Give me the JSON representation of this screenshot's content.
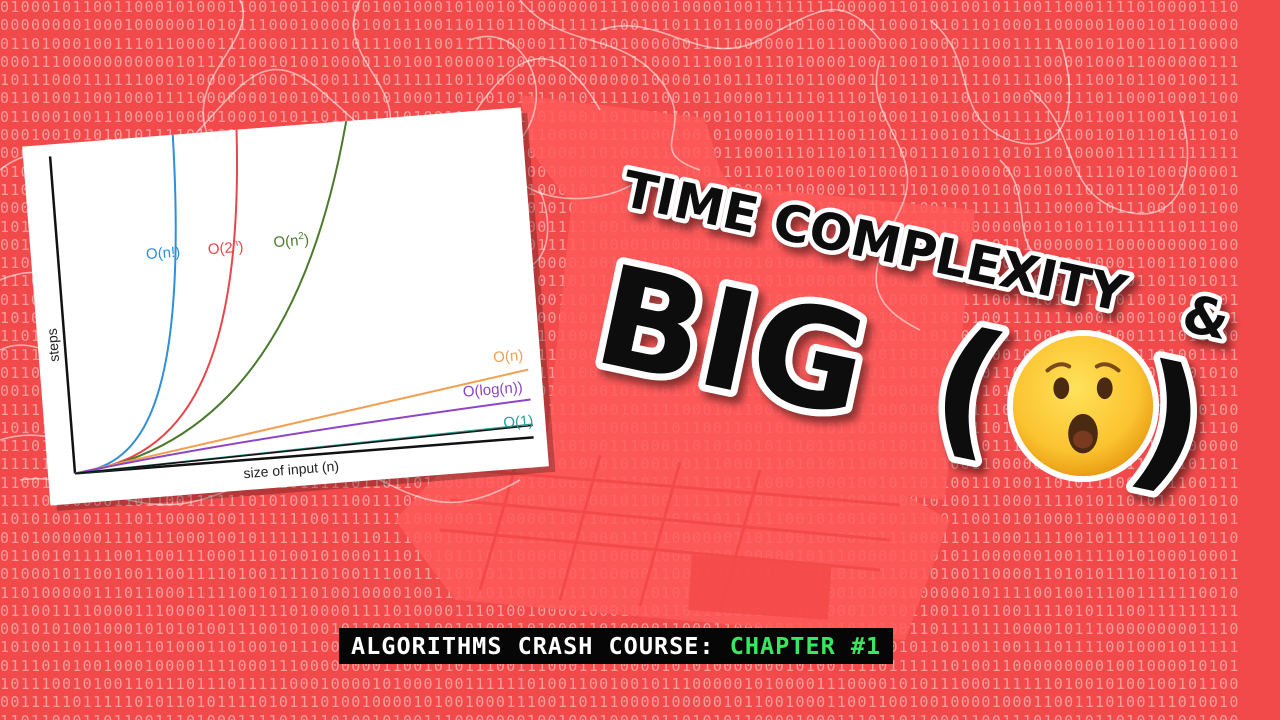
{
  "title": {
    "line1": "TIME COMPLEXITY",
    "ampersand": "&",
    "line2": "BIG",
    "paren_open": "(",
    "paren_close": ")"
  },
  "emoji": "astonished-face-emoji",
  "banner": {
    "prefix": "ALGORITHMS CRASH COURSE: ",
    "highlight": "CHAPTER #1"
  },
  "chart_data": {
    "type": "line",
    "xlabel": "size of input (n)",
    "ylabel": "steps",
    "series": [
      {
        "name": "O(n!)",
        "color": "#2f8fd8"
      },
      {
        "name": "O(2^n)",
        "color": "#e8464a"
      },
      {
        "name": "O(n^2)",
        "color": "#4a7a2c"
      },
      {
        "name": "O(n)",
        "color": "#f2a050"
      },
      {
        "name": "O(log(n))",
        "color": "#8e44c8"
      },
      {
        "name": "O(1)",
        "color": "#2aa198"
      }
    ]
  },
  "colors": {
    "background": "#f24a4a",
    "banner_highlight": "#39e75f"
  }
}
